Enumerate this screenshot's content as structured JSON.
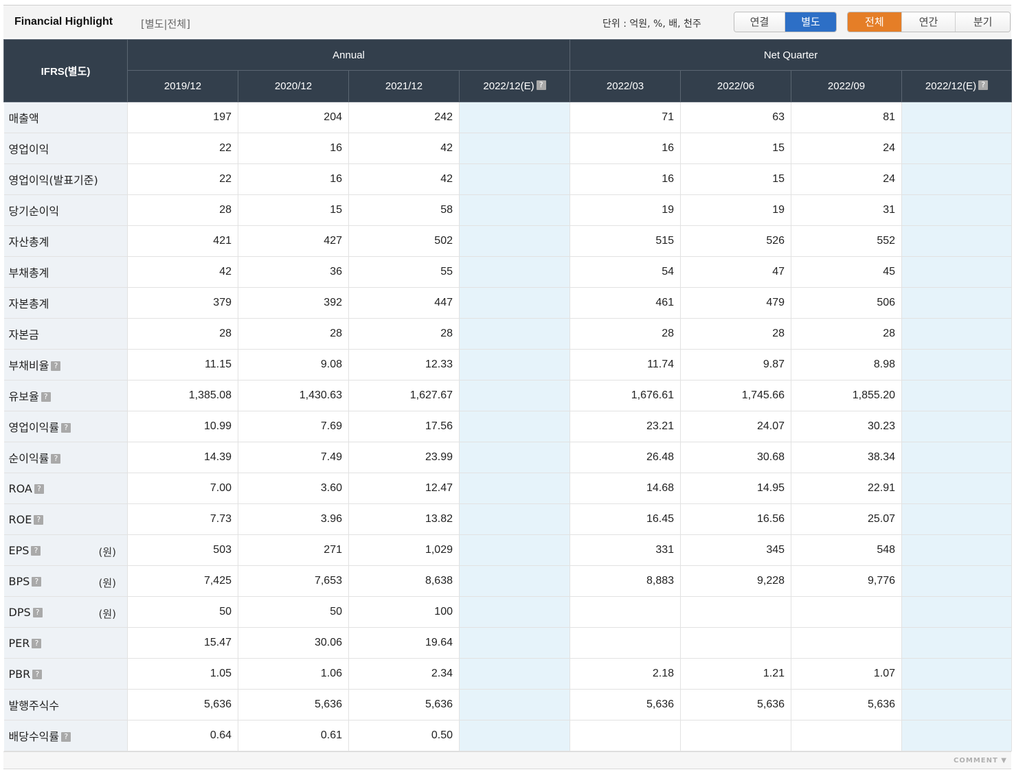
{
  "header": {
    "title": "Financial Highlight",
    "subtitle": "[별도|전체]",
    "unit_text": "단위 : 억원, %, 배, 천주",
    "basis_tabs": [
      {
        "label": "연결"
      },
      {
        "label": "별도"
      }
    ],
    "period_tabs": [
      {
        "label": "전체"
      },
      {
        "label": "연간"
      },
      {
        "label": "분기"
      }
    ]
  },
  "table": {
    "corner": "IFRS(별도)",
    "groups": [
      "Annual",
      "Net Quarter"
    ],
    "periods": [
      "2019/12",
      "2020/12",
      "2021/12",
      "2022/12(E)",
      "2022/03",
      "2022/06",
      "2022/09",
      "2022/12(E)"
    ],
    "rows": [
      {
        "label": "매출액",
        "help": false,
        "unit": "",
        "values": [
          "197",
          "204",
          "242",
          "",
          "71",
          "63",
          "81",
          ""
        ]
      },
      {
        "label": "영업이익",
        "help": false,
        "unit": "",
        "values": [
          "22",
          "16",
          "42",
          "",
          "16",
          "15",
          "24",
          ""
        ]
      },
      {
        "label": "영업이익(발표기준)",
        "help": false,
        "unit": "",
        "values": [
          "22",
          "16",
          "42",
          "",
          "16",
          "15",
          "24",
          ""
        ]
      },
      {
        "label": "당기순이익",
        "help": false,
        "unit": "",
        "values": [
          "28",
          "15",
          "58",
          "",
          "19",
          "19",
          "31",
          ""
        ]
      },
      {
        "label": "자산총계",
        "help": false,
        "unit": "",
        "values": [
          "421",
          "427",
          "502",
          "",
          "515",
          "526",
          "552",
          ""
        ]
      },
      {
        "label": "부채총계",
        "help": false,
        "unit": "",
        "values": [
          "42",
          "36",
          "55",
          "",
          "54",
          "47",
          "45",
          ""
        ]
      },
      {
        "label": "자본총계",
        "help": false,
        "unit": "",
        "values": [
          "379",
          "392",
          "447",
          "",
          "461",
          "479",
          "506",
          ""
        ]
      },
      {
        "label": "자본금",
        "help": false,
        "unit": "",
        "values": [
          "28",
          "28",
          "28",
          "",
          "28",
          "28",
          "28",
          ""
        ]
      },
      {
        "label": "부채비율",
        "help": true,
        "unit": "",
        "values": [
          "11.15",
          "9.08",
          "12.33",
          "",
          "11.74",
          "9.87",
          "8.98",
          ""
        ]
      },
      {
        "label": "유보율",
        "help": true,
        "unit": "",
        "values": [
          "1,385.08",
          "1,430.63",
          "1,627.67",
          "",
          "1,676.61",
          "1,745.66",
          "1,855.20",
          ""
        ]
      },
      {
        "label": "영업이익률",
        "help": true,
        "unit": "",
        "values": [
          "10.99",
          "7.69",
          "17.56",
          "",
          "23.21",
          "24.07",
          "30.23",
          ""
        ]
      },
      {
        "label": "순이익률",
        "help": true,
        "unit": "",
        "values": [
          "14.39",
          "7.49",
          "23.99",
          "",
          "26.48",
          "30.68",
          "38.34",
          ""
        ]
      },
      {
        "label": "ROA",
        "help": true,
        "unit": "",
        "values": [
          "7.00",
          "3.60",
          "12.47",
          "",
          "14.68",
          "14.95",
          "22.91",
          ""
        ]
      },
      {
        "label": "ROE",
        "help": true,
        "unit": "",
        "values": [
          "7.73",
          "3.96",
          "13.82",
          "",
          "16.45",
          "16.56",
          "25.07",
          ""
        ]
      },
      {
        "label": "EPS",
        "help": true,
        "unit": "(원)",
        "values": [
          "503",
          "271",
          "1,029",
          "",
          "331",
          "345",
          "548",
          ""
        ]
      },
      {
        "label": "BPS",
        "help": true,
        "unit": "(원)",
        "values": [
          "7,425",
          "7,653",
          "8,638",
          "",
          "8,883",
          "9,228",
          "9,776",
          ""
        ]
      },
      {
        "label": "DPS",
        "help": true,
        "unit": "(원)",
        "values": [
          "50",
          "50",
          "100",
          "",
          "",
          "",
          "",
          ""
        ]
      },
      {
        "label": "PER",
        "help": true,
        "unit": "",
        "values": [
          "15.47",
          "30.06",
          "19.64",
          "",
          "",
          "",
          "",
          ""
        ]
      },
      {
        "label": "PBR",
        "help": true,
        "unit": "",
        "values": [
          "1.05",
          "1.06",
          "2.34",
          "",
          "2.18",
          "1.21",
          "1.07",
          ""
        ]
      },
      {
        "label": "발행주식수",
        "help": false,
        "unit": "",
        "values": [
          "5,636",
          "5,636",
          "5,636",
          "",
          "5,636",
          "5,636",
          "5,636",
          ""
        ]
      },
      {
        "label": "배당수익률",
        "help": true,
        "unit": "",
        "values": [
          "0.64",
          "0.61",
          "0.50",
          "",
          "",
          "",
          "",
          ""
        ]
      }
    ]
  },
  "footer": {
    "comment_label": "COMMENT"
  },
  "colors": {
    "header_dark": "#333f4c",
    "label_bg": "#eef2f6",
    "estimate_bg": "#e6f3fa",
    "active_blue": "#2d6fc6",
    "active_orange": "#e57e27"
  },
  "icons": {
    "help": "question-mark-icon",
    "comment_toggle": "triangle-down-icon"
  }
}
